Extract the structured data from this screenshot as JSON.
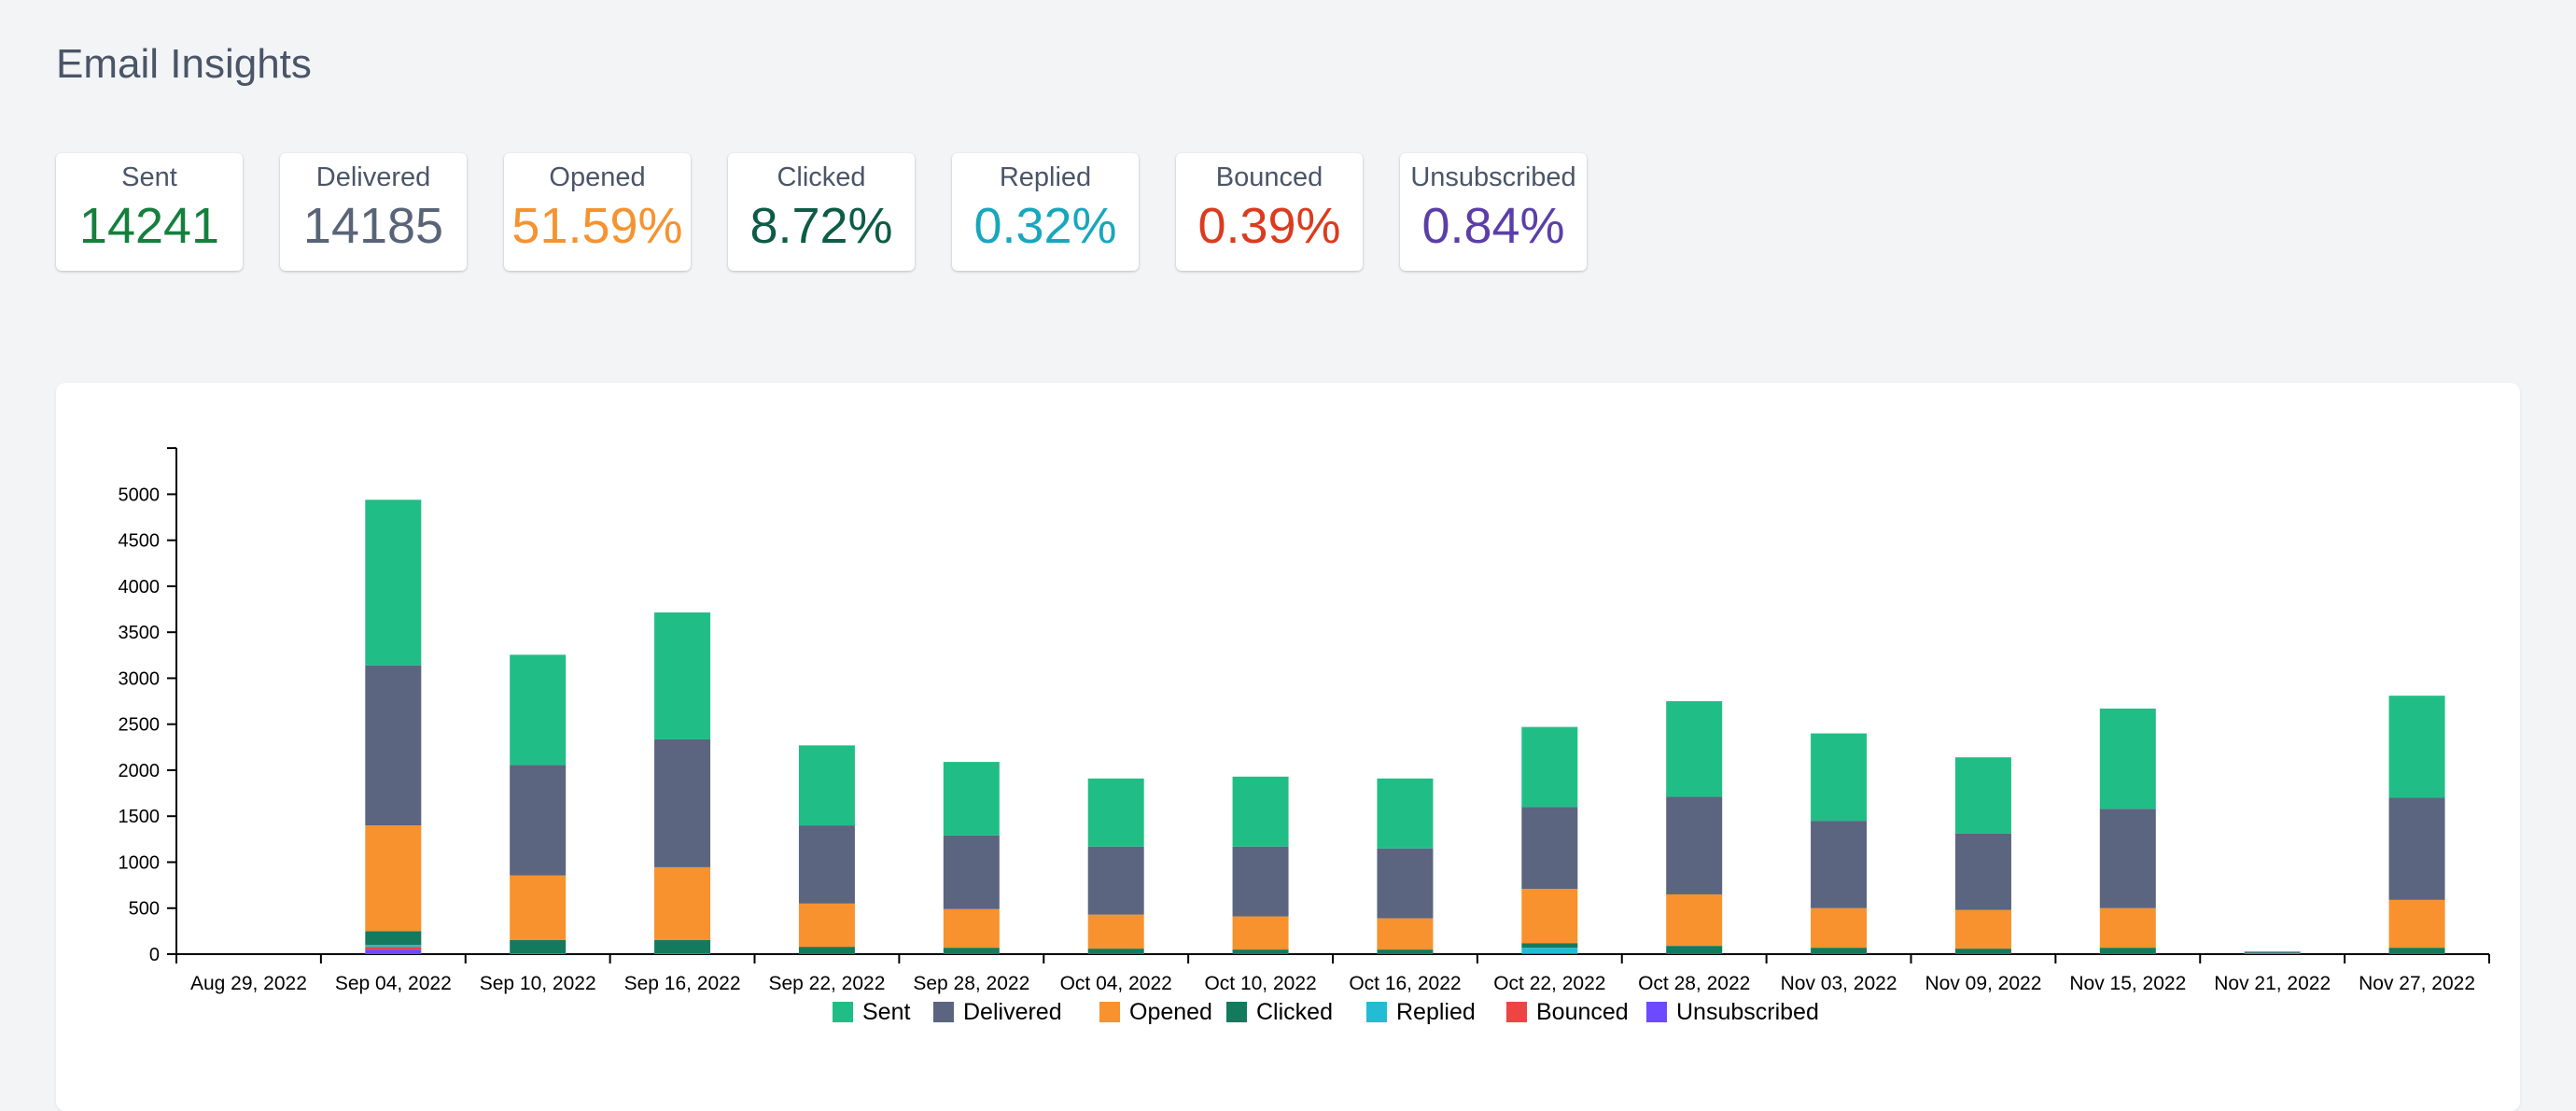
{
  "header": {
    "title": "Email Insights"
  },
  "stats": [
    {
      "label": "Sent",
      "value": "14241",
      "color": "#15803d"
    },
    {
      "label": "Delivered",
      "value": "14185",
      "color": "#5a6478"
    },
    {
      "label": "Opened",
      "value": "51.59%",
      "color": "#f59331"
    },
    {
      "label": "Clicked",
      "value": "8.72%",
      "color": "#0d5c45"
    },
    {
      "label": "Replied",
      "value": "0.32%",
      "color": "#17a7bd"
    },
    {
      "label": "Bounced",
      "value": "0.39%",
      "color": "#dc3b1f"
    },
    {
      "label": "Unsubscribed",
      "value": "0.84%",
      "color": "#5b3fa8"
    }
  ],
  "chart_data": {
    "type": "bar",
    "stacked": true,
    "categories": [
      "Aug 29, 2022",
      "Sep 04, 2022",
      "Sep 10, 2022",
      "Sep 16, 2022",
      "Sep 22, 2022",
      "Sep 28, 2022",
      "Oct 04, 2022",
      "Oct 10, 2022",
      "Oct 16, 2022",
      "Oct 22, 2022",
      "Oct 28, 2022",
      "Nov 03, 2022",
      "Nov 09, 2022",
      "Nov 15, 2022",
      "Nov 21, 2022",
      "Nov 27, 2022"
    ],
    "series": [
      {
        "name": "Unsubscribed",
        "color": "#6d4aff",
        "values": [
          0,
          50,
          0,
          0,
          0,
          0,
          0,
          0,
          0,
          10,
          0,
          0,
          0,
          0,
          0,
          0
        ]
      },
      {
        "name": "Bounced",
        "color": "#ef4444",
        "values": [
          0,
          30,
          0,
          0,
          0,
          0,
          0,
          0,
          0,
          0,
          0,
          0,
          0,
          0,
          0,
          0
        ]
      },
      {
        "name": "Replied",
        "color": "#22bcd4",
        "values": [
          0,
          20,
          5,
          5,
          0,
          0,
          0,
          0,
          0,
          60,
          0,
          0,
          0,
          0,
          0,
          0
        ]
      },
      {
        "name": "Clicked",
        "color": "#137a5e",
        "values": [
          0,
          150,
          150,
          150,
          80,
          70,
          60,
          50,
          50,
          50,
          90,
          70,
          60,
          70,
          5,
          70
        ]
      },
      {
        "name": "Opened",
        "color": "#f7922e",
        "values": [
          0,
          1150,
          700,
          790,
          470,
          420,
          370,
          360,
          340,
          590,
          560,
          430,
          420,
          430,
          5,
          520
        ]
      },
      {
        "name": "Delivered",
        "color": "#5b6580",
        "values": [
          0,
          1740,
          1200,
          1390,
          850,
          800,
          740,
          760,
          760,
          890,
          1060,
          950,
          830,
          1080,
          10,
          1110
        ]
      },
      {
        "name": "Sent",
        "color": "#20be86",
        "values": [
          0,
          1800,
          1200,
          1380,
          870,
          800,
          740,
          760,
          760,
          870,
          1040,
          950,
          830,
          1090,
          10,
          1110
        ]
      }
    ],
    "legend_order": [
      "Sent",
      "Delivered",
      "Opened",
      "Clicked",
      "Replied",
      "Bounced",
      "Unsubscribed"
    ],
    "ylim": [
      0,
      5400
    ],
    "yticks": [
      0,
      500,
      1000,
      1500,
      2000,
      2500,
      3000,
      3500,
      4000,
      4500,
      5000
    ],
    "xlabel": "",
    "ylabel": "",
    "legend_position": "bottom-center",
    "grid": false
  }
}
